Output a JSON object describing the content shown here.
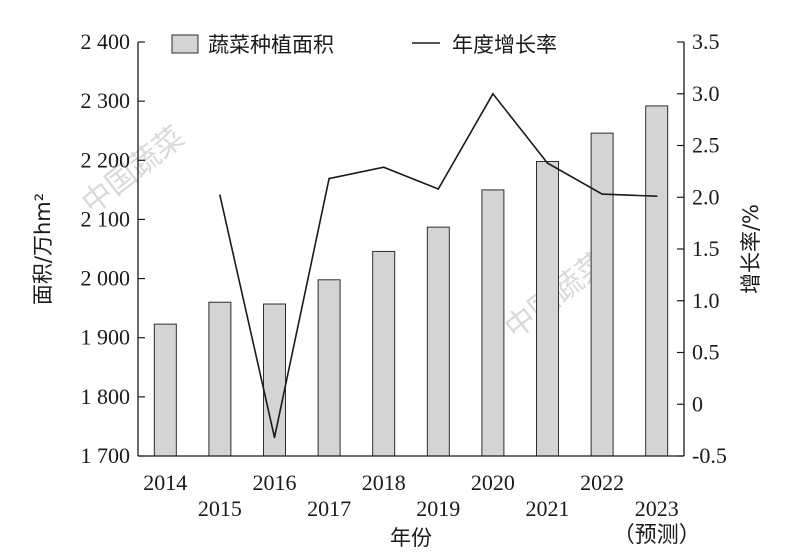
{
  "watermark": "中国蔬菜",
  "chart_data": {
    "type": "bar",
    "categories": [
      "2014",
      "2015",
      "2016",
      "2017",
      "2018",
      "2019",
      "2020",
      "2021",
      "2022",
      "2023"
    ],
    "category_notes": {
      "2023": "（预测）"
    },
    "xlabel": "年份",
    "ylabel": "面积/万hm²",
    "y2label": "增长率/%",
    "ylim": [
      1700,
      2400
    ],
    "y2lim": [
      -0.5,
      3.5
    ],
    "yticks": [
      "1 700",
      "1 800",
      "1 900",
      "2 000",
      "2 100",
      "2 200",
      "2 300",
      "2 400"
    ],
    "y2ticks": [
      "-0.5",
      "0",
      "0.5",
      "1.0",
      "1.5",
      "2.0",
      "2.5",
      "3.0",
      "3.5"
    ],
    "legend_position": "top",
    "series": [
      {
        "name": "蔬菜种植面积",
        "type": "bar",
        "axis": "left",
        "color": "#d4d4d4",
        "values": [
          1923,
          1960,
          1957,
          1998,
          2046,
          2087,
          2150,
          2198,
          2246,
          2292
        ]
      },
      {
        "name": "年度增长率",
        "type": "line",
        "axis": "right",
        "color": "#1a1a1a",
        "values": [
          null,
          2.02,
          -0.32,
          2.18,
          2.29,
          2.08,
          3.0,
          2.33,
          2.03,
          2.01
        ]
      }
    ]
  }
}
